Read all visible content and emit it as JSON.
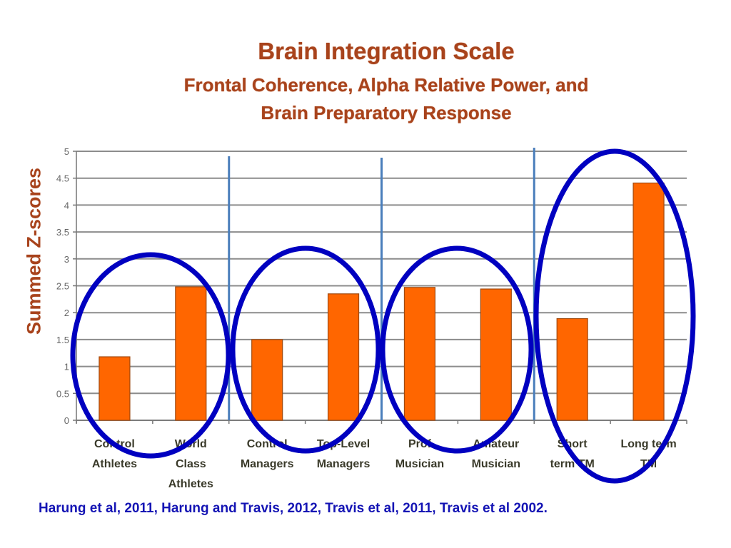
{
  "title": {
    "line1": "Brain Integration Scale",
    "line2": "Frontal Coherence, Alpha Relative Power, and",
    "line3": "Brain Preparatory Response"
  },
  "citation": "Harung et al, 2011, Harung and Travis, 2012, Travis et al, 2011, Travis et al 2002.",
  "colors": {
    "bar": "#ff6600",
    "bar_border": "#a04a10",
    "ellipse": "#0000c0",
    "divider": "#4a7ebb",
    "title": "#a8431c",
    "citation": "#1414b4"
  },
  "chart_data": {
    "type": "bar",
    "title": "Brain Integration Scale",
    "subtitle": "Frontal Coherence, Alpha Relative Power, and Brain Preparatory Response",
    "xlabel": "",
    "ylabel": "Summed Z-scores",
    "ylim": [
      0,
      5
    ],
    "yticks": [
      "0",
      "0.5",
      "1",
      "1.5",
      "2",
      "2.5",
      "3",
      "3.5",
      "4",
      "4.5",
      "5"
    ],
    "grid": true,
    "legend": null,
    "categories": [
      "Control Athletes",
      "World Class Athletes",
      "Control Managers",
      "Top-Level Managers",
      "Prof Musician",
      "Amateur Musician",
      "Short term TM",
      "Long term TM"
    ],
    "category_label_lines": [
      [
        "Control",
        "Athletes"
      ],
      [
        "World",
        "Class",
        "Athletes"
      ],
      [
        "Control",
        "Managers"
      ],
      [
        "Top-Level",
        "Managers"
      ],
      [
        "Prof",
        "Musician"
      ],
      [
        "Amateur",
        "Musician"
      ],
      [
        "Short",
        "term TM"
      ],
      [
        "Long term",
        "TM"
      ]
    ],
    "values": [
      1.18,
      2.48,
      1.5,
      2.35,
      2.47,
      2.44,
      1.89,
      4.41
    ],
    "annotations": [
      "Blue ellipses circle each pair: Athletes, Managers, Musicians, TM",
      "Vertical blue divider lines separate the four groups"
    ],
    "groups": [
      {
        "name": "Athletes",
        "members": [
          0,
          1
        ]
      },
      {
        "name": "Managers",
        "members": [
          2,
          3
        ]
      },
      {
        "name": "Musicians",
        "members": [
          4,
          5
        ]
      },
      {
        "name": "TM",
        "members": [
          6,
          7
        ]
      }
    ]
  }
}
